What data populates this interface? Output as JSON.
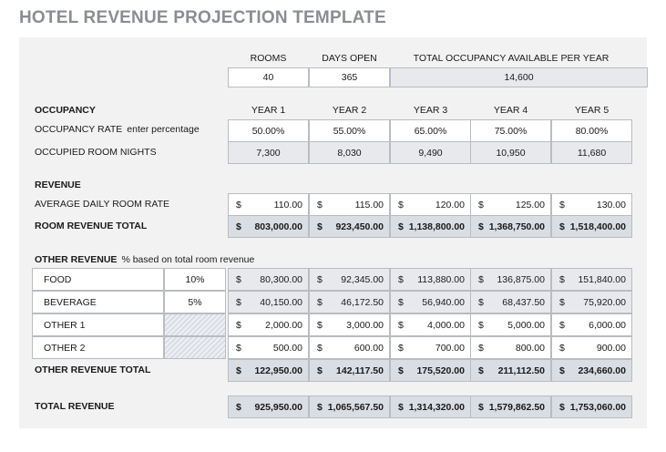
{
  "title": "HOTEL REVENUE PROJECTION TEMPLATE",
  "summary": {
    "headers": [
      "ROOMS",
      "DAYS OPEN",
      "TOTAL OCCUPANCY AVAILABLE  PER YEAR"
    ],
    "values": [
      "40",
      "365",
      "14,600"
    ]
  },
  "occupancy": {
    "label": "OCCUPANCY",
    "years": [
      "YEAR 1",
      "YEAR 2",
      "YEAR 3",
      "YEAR 4",
      "YEAR 5"
    ],
    "rate_label": "OCCUPANCY RATE",
    "rate_note": "enter percentage",
    "rates": [
      "50.00%",
      "55.00%",
      "65.00%",
      "75.00%",
      "80.00%"
    ],
    "nights_label": "OCCUPIED ROOM NIGHTS",
    "nights": [
      "7,300",
      "8,030",
      "9,490",
      "10,950",
      "11,680"
    ]
  },
  "revenue": {
    "label": "REVENUE",
    "currency": "$",
    "adr_label": "AVERAGE DAILY ROOM RATE",
    "adr": [
      "110.00",
      "115.00",
      "120.00",
      "125.00",
      "130.00"
    ],
    "room_total_label": "ROOM REVENUE TOTAL",
    "room_total": [
      "803,000.00",
      "923,450.00",
      "1,138,800.00",
      "1,368,750.00",
      "1,518,400.00"
    ]
  },
  "other_revenue": {
    "label": "OTHER REVENUE",
    "note": "% based on total room revenue",
    "rows": [
      {
        "name": "FOOD",
        "pct": "10%",
        "values": [
          "80,300.00",
          "92,345.00",
          "113,880.00",
          "136,875.00",
          "151,840.00"
        ]
      },
      {
        "name": "BEVERAGE",
        "pct": "5%",
        "values": [
          "40,150.00",
          "46,172.50",
          "56,940.00",
          "68,437.50",
          "75,920.00"
        ]
      },
      {
        "name": "OTHER 1",
        "pct": "",
        "values": [
          "2,000.00",
          "3,000.00",
          "4,000.00",
          "5,000.00",
          "6,000.00"
        ]
      },
      {
        "name": "OTHER 2",
        "pct": "",
        "values": [
          "500.00",
          "600.00",
          "700.00",
          "800.00",
          "900.00"
        ]
      }
    ],
    "total_label": "OTHER REVENUE TOTAL",
    "totals": [
      "122,950.00",
      "142,117.50",
      "175,520.00",
      "211,112.50",
      "234,660.00"
    ]
  },
  "total_revenue": {
    "label": "TOTAL REVENUE",
    "values": [
      "925,950.00",
      "1,065,567.50",
      "1,314,320.00",
      "1,579,862.50",
      "1,753,060.00"
    ]
  }
}
